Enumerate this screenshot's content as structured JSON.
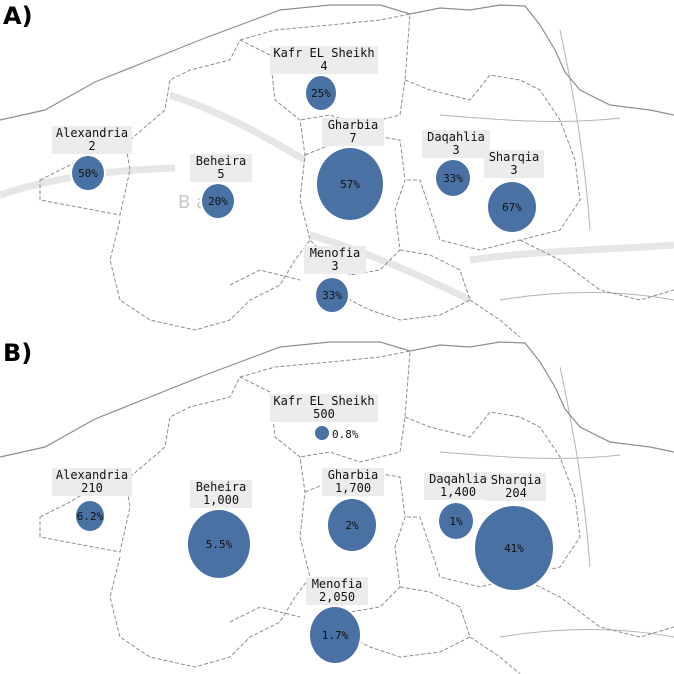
{
  "panel_a": {
    "letter": "A)",
    "background_label": "B a",
    "regions": [
      {
        "name": "Kafr EL Sheikh",
        "count": "4",
        "pct": "25%"
      },
      {
        "name": "Alexandria",
        "count": "2",
        "pct": "50%"
      },
      {
        "name": "Beheira",
        "count": "5",
        "pct": "20%"
      },
      {
        "name": "Gharbia",
        "count": "7",
        "pct": "57%"
      },
      {
        "name": "Daqahlia",
        "count": "3",
        "pct": "33%"
      },
      {
        "name": "Sharqia",
        "count": "3",
        "pct": "67%"
      },
      {
        "name": "Menofia",
        "count": "3",
        "pct": "33%"
      }
    ]
  },
  "panel_b": {
    "letter": "B)",
    "regions": [
      {
        "name": "Kafr EL Sheikh",
        "count": "500",
        "pct": "0.8%"
      },
      {
        "name": "Alexandria",
        "count": "210",
        "pct": "6.2%"
      },
      {
        "name": "Beheira",
        "count": "1,000",
        "pct": "5.5%"
      },
      {
        "name": "Gharbia",
        "count": "1,700",
        "pct": "2%"
      },
      {
        "name": "Daqahlia",
        "count": "1,400",
        "pct": "1%"
      },
      {
        "name": "Sharqia",
        "count": "204",
        "pct": "41%"
      },
      {
        "name": "Menofia",
        "count": "2,050",
        "pct": "1.7%"
      }
    ]
  },
  "colors": {
    "bubble": "#4a71a3",
    "label_bg": "#ececec",
    "border": "#9a9a9a"
  }
}
